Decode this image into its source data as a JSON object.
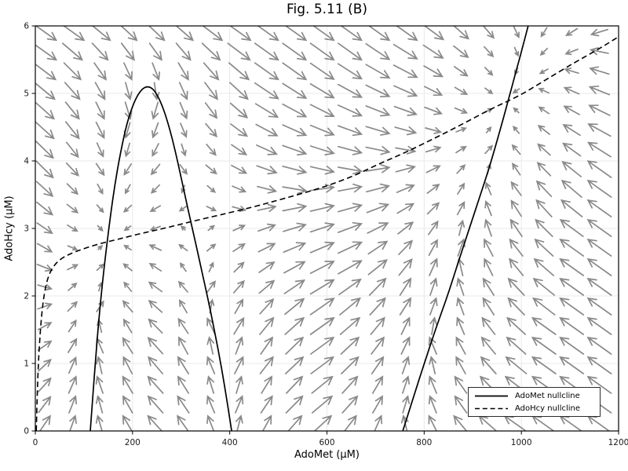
{
  "chart_data": {
    "type": "line",
    "subtype": "phase-plane-with-vector-field",
    "title": "Fig. 5.11 (B)",
    "xlabel": "AdoMet (μM)",
    "ylabel": "AdoHcy (μM)",
    "xlim": [
      0,
      1200
    ],
    "ylim": [
      0,
      6
    ],
    "x_ticks": [
      0,
      200,
      400,
      600,
      800,
      1000,
      1200
    ],
    "y_ticks": [
      0,
      1,
      2,
      3,
      4,
      5,
      6
    ],
    "grid": true,
    "legend": {
      "position": "lower right",
      "entries": [
        {
          "label": "AdoMet nullcline",
          "style": "solid"
        },
        {
          "label": "AdoHcy nullcline",
          "style": "dashed"
        }
      ]
    },
    "series": [
      {
        "name": "AdoMet nullcline",
        "style": "solid",
        "color": "#000000",
        "branches": [
          [
            [
              113,
              0
            ],
            [
              118,
              0.5
            ],
            [
              124,
              1.05
            ],
            [
              130,
              1.6
            ],
            [
              137,
              2.12
            ],
            [
              145,
              2.64
            ],
            [
              153,
              3.1
            ],
            [
              163,
              3.62
            ],
            [
              175,
              4.12
            ],
            [
              189,
              4.58
            ],
            [
              204,
              4.89
            ],
            [
              218,
              5.06
            ],
            [
              231,
              5.11
            ],
            [
              244,
              5.06
            ],
            [
              258,
              4.88
            ],
            [
              273,
              4.57
            ],
            [
              289,
              4.12
            ],
            [
              306,
              3.55
            ],
            [
              323,
              3.0
            ],
            [
              341,
              2.42
            ],
            [
              359,
              1.83
            ],
            [
              376,
              1.22
            ],
            [
              391,
              0.6
            ],
            [
              404,
              0
            ]
          ],
          [
            [
              756,
              0
            ],
            [
              779,
              0.52
            ],
            [
              801,
              1.02
            ],
            [
              824,
              1.52
            ],
            [
              848,
              2.0
            ],
            [
              871,
              2.52
            ],
            [
              893,
              3.0
            ],
            [
              914,
              3.46
            ],
            [
              934,
              3.9
            ],
            [
              954,
              4.4
            ],
            [
              972,
              4.87
            ],
            [
              988,
              5.3
            ],
            [
              1002,
              5.67
            ],
            [
              1014,
              6.0
            ]
          ]
        ]
      },
      {
        "name": "AdoHcy nullcline",
        "style": "dashed",
        "color": "#000000",
        "points": [
          [
            2,
            0
          ],
          [
            3,
            0.3
          ],
          [
            4,
            0.55
          ],
          [
            6,
            0.95
          ],
          [
            9,
            1.35
          ],
          [
            13,
            1.72
          ],
          [
            18,
            2.02
          ],
          [
            25,
            2.26
          ],
          [
            35,
            2.42
          ],
          [
            50,
            2.54
          ],
          [
            70,
            2.62
          ],
          [
            95,
            2.69
          ],
          [
            130,
            2.77
          ],
          [
            170,
            2.84
          ],
          [
            220,
            2.93
          ],
          [
            270,
            3.01
          ],
          [
            320,
            3.1
          ],
          [
            380,
            3.2
          ],
          [
            450,
            3.32
          ],
          [
            510,
            3.44
          ],
          [
            580,
            3.58
          ],
          [
            650,
            3.76
          ],
          [
            705,
            3.95
          ],
          [
            760,
            4.12
          ],
          [
            820,
            4.33
          ],
          [
            880,
            4.55
          ],
          [
            940,
            4.78
          ],
          [
            995,
            4.96
          ],
          [
            1050,
            5.2
          ],
          [
            1110,
            5.46
          ],
          [
            1160,
            5.66
          ],
          [
            1200,
            5.84
          ]
        ]
      }
    ],
    "vector_field": {
      "description": "quiver arrows: horizontal component flips sign across AdoMet nullcline (leftward inside hump and right of rising branch), vertical component flips across AdoHcy nullcline (upward below it)",
      "grid": {
        "x_start": 19,
        "x_step": 57.1,
        "x_count": 21,
        "y_start": 0.1,
        "y_step": 0.2905,
        "y_count": 21
      },
      "u_mag": {
        "min": 2.5,
        "range": 27,
        "dist_scale": 1.1,
        "s_norm": 200
      },
      "v_mag": {
        "min": 4,
        "range": 17,
        "dh_scale": 1.8
      },
      "hump_peak_y": 5.11
    },
    "styles": {
      "nullcline_color": "#000000",
      "arrow_color": "#8a8a8a",
      "grid_color": "#e9e9e9",
      "spine_color": "#000000",
      "tick_label_color": "#1a1a1a",
      "background": "#ffffff",
      "dash_pattern": "7,4.2"
    }
  }
}
